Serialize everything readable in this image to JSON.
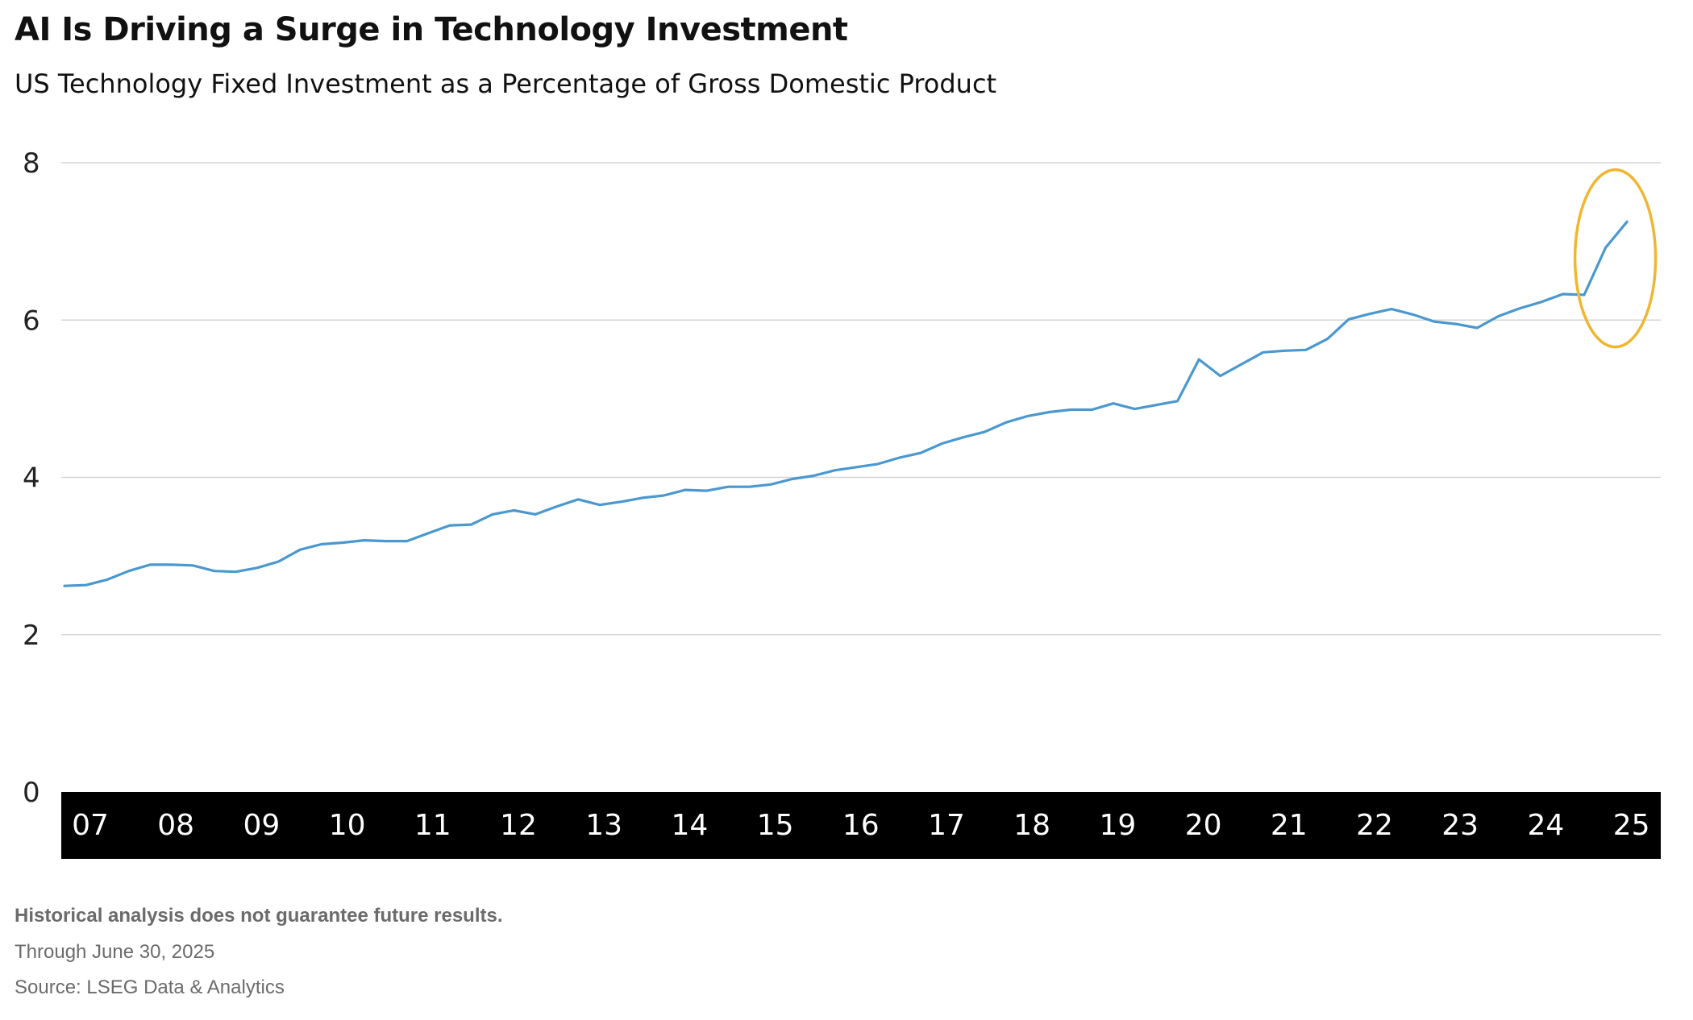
{
  "chart_data": {
    "type": "line",
    "title": "AI Is Driving a Surge in Technology Investment",
    "subtitle": "US Technology Fixed Investment as a Percentage of Gross Domestic Product",
    "xlabel": "",
    "ylabel": "",
    "ylim": [
      0,
      8
    ],
    "yticks": [
      0,
      2,
      4,
      6,
      8
    ],
    "xlim": [
      2007.0,
      2025.5
    ],
    "x_tick_labels": [
      "07",
      "08",
      "09",
      "10",
      "11",
      "12",
      "13",
      "14",
      "15",
      "16",
      "17",
      "18",
      "19",
      "20",
      "21",
      "22",
      "23",
      "24",
      "25"
    ],
    "grid": true,
    "legend": "none",
    "colors": {
      "line": "#4a98cf",
      "highlight": "#f0b632",
      "axis_band": "#000000",
      "grid": "#d5d5d5"
    },
    "annotation": "highlight-ellipse around 2025 surge",
    "series": [
      {
        "x": [
          2007.0,
          2007.25,
          2007.5,
          2007.75,
          2008.0,
          2008.25,
          2008.5,
          2008.75,
          2009.0,
          2009.25,
          2009.5,
          2009.75,
          2010.0,
          2010.25,
          2010.5,
          2010.75,
          2011.0,
          2011.25,
          2011.5,
          2011.75,
          2012.0,
          2012.25,
          2012.5,
          2012.75,
          2013.0,
          2013.25,
          2013.5,
          2013.75,
          2014.0,
          2014.25,
          2014.5,
          2014.75,
          2015.0,
          2015.25,
          2015.5,
          2015.75,
          2016.0,
          2016.25,
          2016.5,
          2016.75,
          2017.0,
          2017.25,
          2017.5,
          2017.75,
          2018.0,
          2018.25,
          2018.5,
          2018.75,
          2019.0,
          2019.25,
          2019.5,
          2019.75,
          2020.0,
          2020.25,
          2020.5,
          2020.75,
          2021.0,
          2021.25,
          2021.5,
          2021.75,
          2022.0,
          2022.25,
          2022.5,
          2022.75,
          2023.0,
          2023.25,
          2023.5,
          2023.75,
          2024.0,
          2024.25,
          2024.5,
          2024.75,
          2025.0,
          2025.25
        ],
        "values": [
          2.62,
          2.63,
          2.7,
          2.81,
          2.89,
          2.89,
          2.88,
          2.81,
          2.8,
          2.85,
          2.93,
          3.08,
          3.15,
          3.17,
          3.2,
          3.19,
          3.19,
          3.29,
          3.39,
          3.4,
          3.53,
          3.58,
          3.53,
          3.63,
          3.72,
          3.65,
          3.69,
          3.74,
          3.77,
          3.84,
          3.83,
          3.88,
          3.88,
          3.91,
          3.98,
          4.02,
          4.09,
          4.13,
          4.17,
          4.25,
          4.31,
          4.43,
          4.51,
          4.58,
          4.7,
          4.78,
          4.83,
          4.86,
          4.86,
          4.94,
          4.87,
          4.92,
          4.97,
          5.5,
          5.29,
          5.44,
          5.59,
          5.61,
          5.62,
          5.76,
          6.01,
          6.08,
          6.14,
          6.07,
          5.98,
          5.95,
          5.9,
          6.05,
          6.15,
          6.23,
          6.33,
          6.32,
          6.92,
          7.25
        ]
      }
    ]
  },
  "notes": {
    "disclaimer": "Historical analysis does not guarantee future results.",
    "date": "Through June 30, 2025",
    "source": "Source: LSEG Data & Analytics"
  }
}
